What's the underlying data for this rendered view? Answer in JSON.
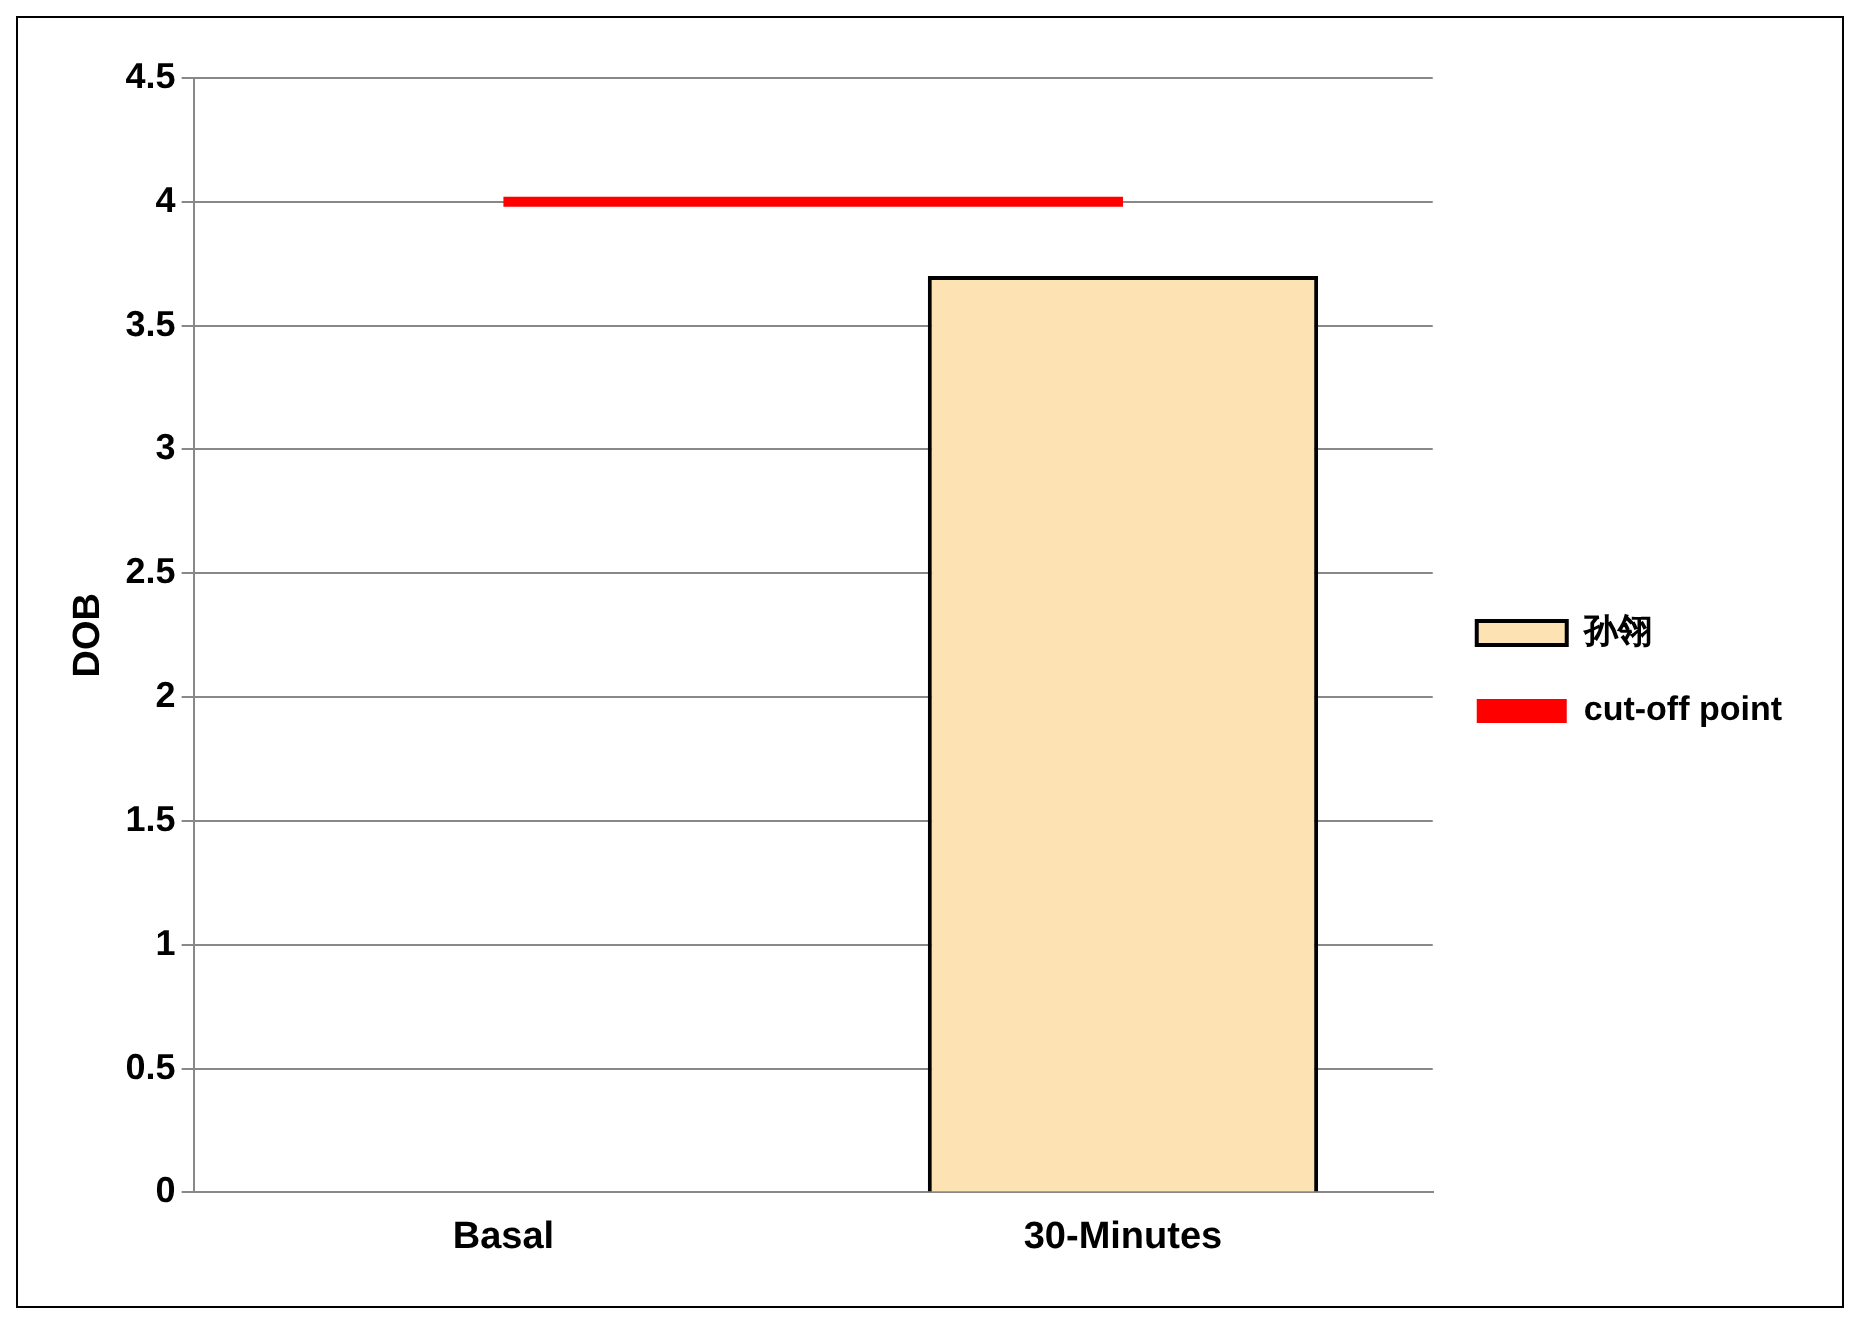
{
  "chart_data": {
    "type": "bar",
    "ylabel": "DOB",
    "categories": [
      "Basal",
      "30-Minutes"
    ],
    "series": [
      {
        "name": "孙翎",
        "color": "#fde3b4",
        "values": [
          null,
          3.7
        ]
      },
      {
        "name": "cut-off point",
        "type": "line",
        "color": "#ff0000",
        "values": [
          4,
          4
        ]
      }
    ],
    "ylim": [
      0,
      4.5
    ],
    "yticks": [
      0,
      0.5,
      1,
      1.5,
      2,
      2.5,
      3,
      3.5,
      4,
      4.5
    ],
    "grid": "y",
    "legend": "right",
    "marker": "none"
  }
}
